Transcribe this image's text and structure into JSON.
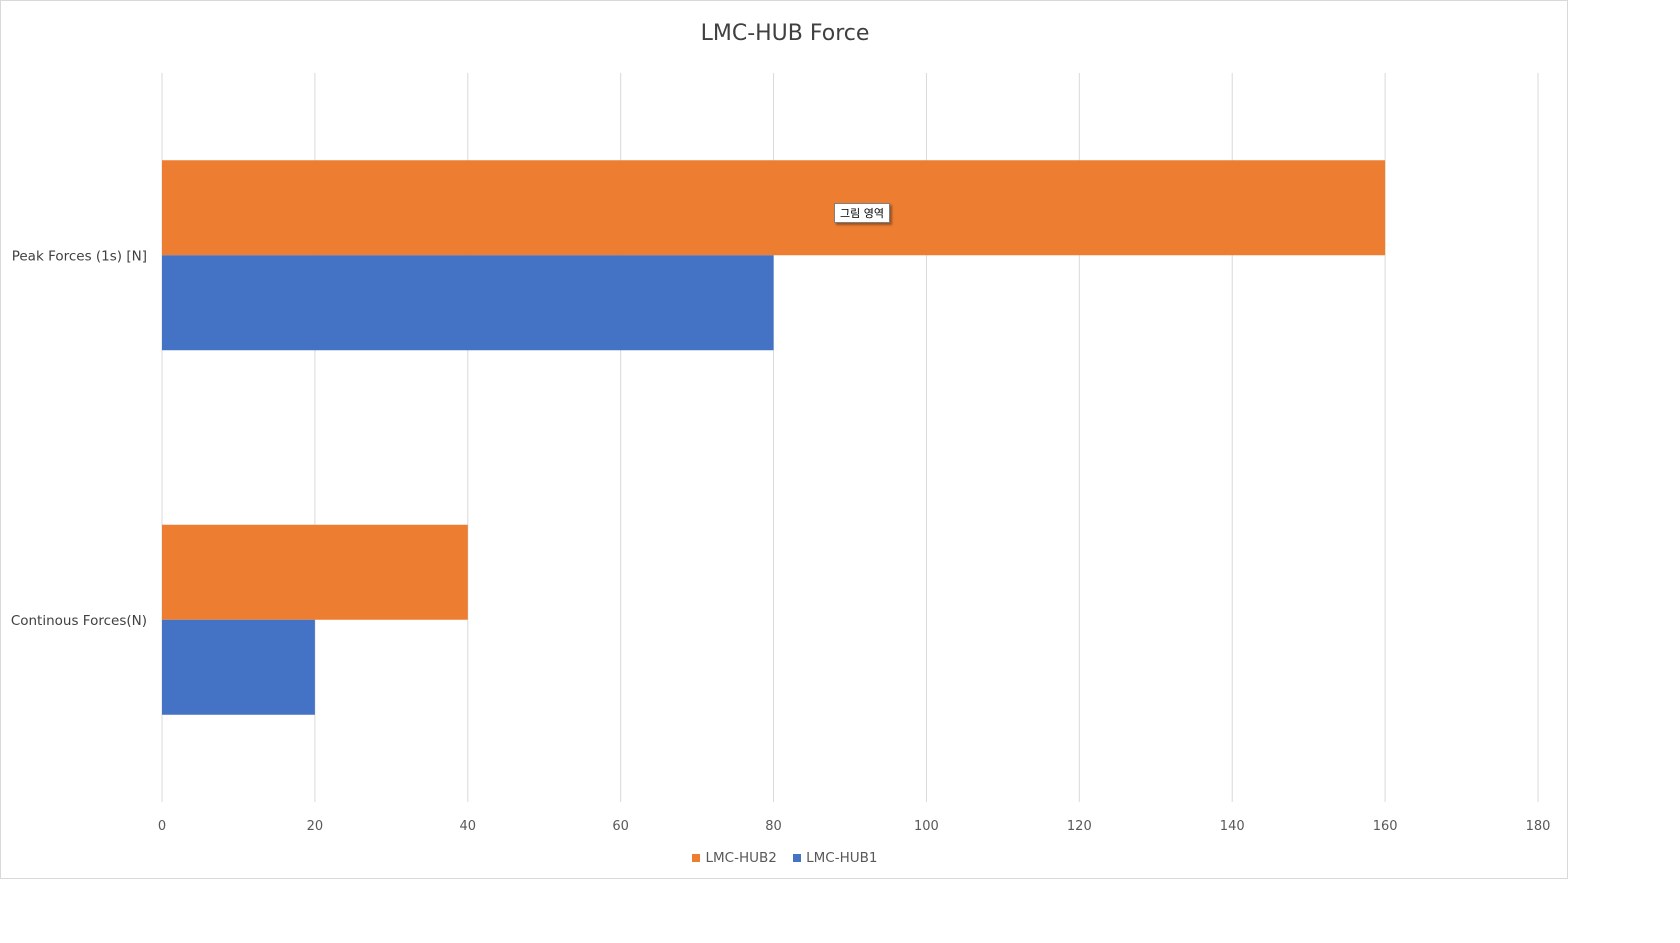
{
  "chart_data": {
    "type": "bar",
    "orientation": "horizontal",
    "title": "LMC-HUB Force",
    "categories": [
      "Peak Forces (1s) [N]",
      "Continous Forces(N)"
    ],
    "series": [
      {
        "name": "LMC-HUB2",
        "color": "#ED7D31",
        "values": [
          160,
          40
        ]
      },
      {
        "name": "LMC-HUB1",
        "color": "#4472C4",
        "values": [
          80,
          20
        ]
      }
    ],
    "xlim": [
      0,
      180
    ],
    "xticks": [
      0,
      20,
      40,
      60,
      80,
      100,
      120,
      140,
      160,
      180
    ],
    "grid": "vertical",
    "legend_position": "bottom"
  },
  "tooltip": {
    "text": "그림 영역"
  },
  "legend": [
    {
      "name": "LMC-HUB2",
      "color": "#ED7D31"
    },
    {
      "name": "LMC-HUB1",
      "color": "#4472C4"
    }
  ]
}
